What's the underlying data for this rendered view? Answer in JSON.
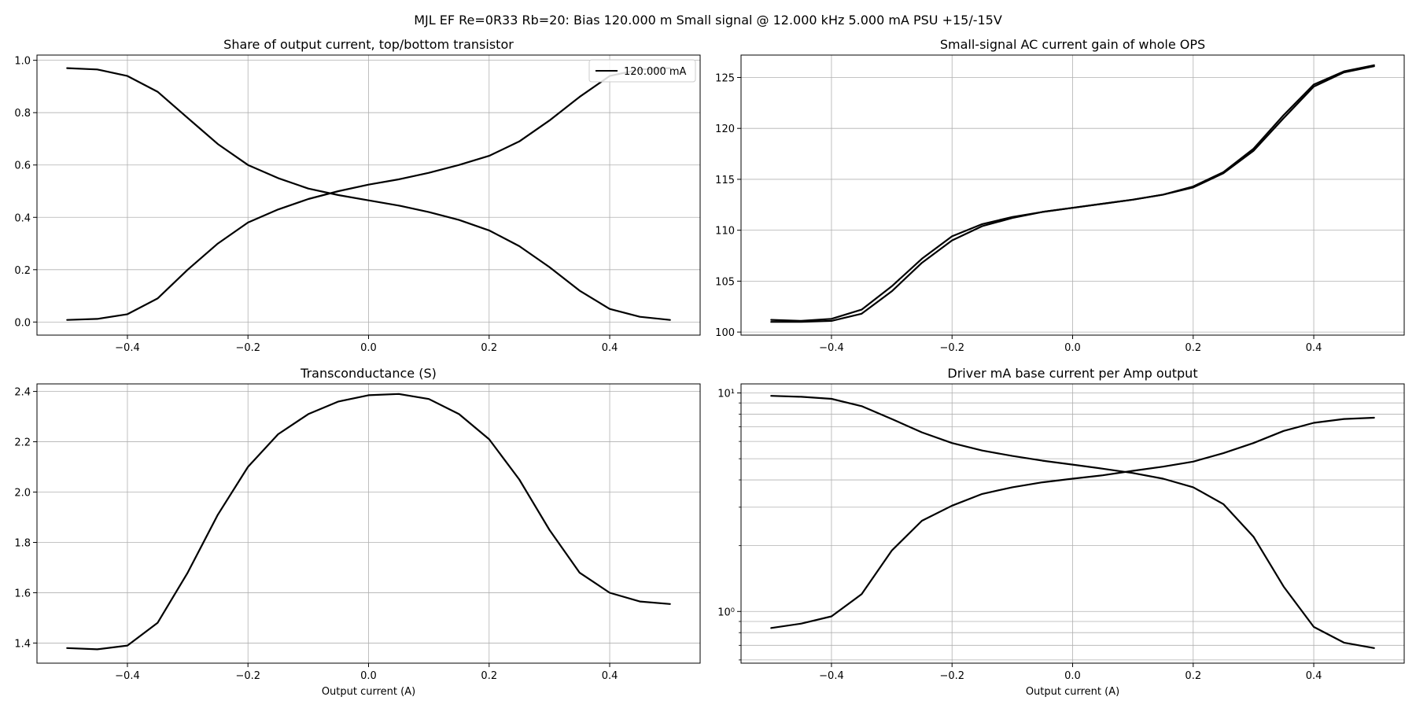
{
  "suptitle": "MJL EF Re=0R33 Rb=20: Bias 120.000 m Small signal @ 12.000 kHz 5.000 mA PSU +15/-15V",
  "chart_data": [
    {
      "type": "line",
      "title": "Share of output current, top/bottom transistor",
      "xlabel": "",
      "ylabel": "",
      "xlim": [
        -0.55,
        0.55
      ],
      "ylim": [
        -0.05,
        1.02
      ],
      "xticks": [
        -0.4,
        -0.2,
        0.0,
        0.2,
        0.4
      ],
      "yticks": [
        0.0,
        0.2,
        0.4,
        0.6,
        0.8,
        1.0
      ],
      "grid": true,
      "legend": {
        "placement": "top-right",
        "entries": [
          "120.000 mA"
        ]
      },
      "line_color": "#000000",
      "series": [
        {
          "x": [
            -0.5,
            -0.45,
            -0.4,
            -0.35,
            -0.3,
            -0.25,
            -0.2,
            -0.15,
            -0.1,
            -0.05,
            0.0,
            0.05,
            0.1,
            0.15,
            0.2,
            0.25,
            0.3,
            0.35,
            0.4,
            0.45,
            0.5
          ],
          "y": [
            0.97,
            0.965,
            0.94,
            0.88,
            0.78,
            0.68,
            0.6,
            0.55,
            0.51,
            0.485,
            0.465,
            0.445,
            0.42,
            0.39,
            0.35,
            0.29,
            0.21,
            0.12,
            0.05,
            0.02,
            0.008
          ]
        },
        {
          "x": [
            -0.5,
            -0.45,
            -0.4,
            -0.35,
            -0.3,
            -0.25,
            -0.2,
            -0.15,
            -0.1,
            -0.05,
            0.0,
            0.05,
            0.1,
            0.15,
            0.2,
            0.25,
            0.3,
            0.35,
            0.4,
            0.45,
            0.5
          ],
          "y": [
            0.008,
            0.012,
            0.03,
            0.09,
            0.2,
            0.3,
            0.38,
            0.43,
            0.47,
            0.5,
            0.525,
            0.545,
            0.57,
            0.6,
            0.635,
            0.69,
            0.77,
            0.86,
            0.94,
            0.965,
            0.97
          ]
        }
      ]
    },
    {
      "type": "line",
      "title": "Small-signal AC current gain of whole OPS",
      "xlabel": "",
      "ylabel": "",
      "xlim": [
        -0.55,
        0.55
      ],
      "ylim": [
        99.7,
        127.2
      ],
      "xticks": [
        -0.4,
        -0.2,
        0.0,
        0.2,
        0.4
      ],
      "yticks": [
        100,
        105,
        110,
        115,
        120,
        125
      ],
      "grid": true,
      "line_color": "#000000",
      "series": [
        {
          "x": [
            -0.5,
            -0.45,
            -0.4,
            -0.35,
            -0.3,
            -0.25,
            -0.2,
            -0.15,
            -0.1,
            -0.05,
            0.0,
            0.05,
            0.1,
            0.15,
            0.2,
            0.25,
            0.3,
            0.35,
            0.4,
            0.45,
            0.5
          ],
          "y": [
            101.2,
            101.1,
            101.3,
            102.2,
            104.5,
            107.2,
            109.4,
            110.6,
            111.3,
            111.8,
            112.2,
            112.6,
            113.0,
            113.5,
            114.3,
            115.7,
            118.0,
            121.3,
            124.3,
            125.6,
            126.2
          ]
        },
        {
          "x": [
            -0.5,
            -0.45,
            -0.4,
            -0.35,
            -0.3,
            -0.25,
            -0.2,
            -0.15,
            -0.1,
            -0.05,
            0.0,
            0.05,
            0.1,
            0.15,
            0.2,
            0.25,
            0.3,
            0.35,
            0.4,
            0.45,
            0.5
          ],
          "y": [
            101.0,
            101.0,
            101.1,
            101.8,
            104.0,
            106.8,
            109.0,
            110.4,
            111.2,
            111.8,
            112.2,
            112.6,
            113.0,
            113.5,
            114.2,
            115.6,
            117.8,
            121.0,
            124.1,
            125.5,
            126.1
          ]
        }
      ]
    },
    {
      "type": "line",
      "title": "Transconductance (S)",
      "xlabel": "Output current (A)",
      "ylabel": "",
      "xlim": [
        -0.55,
        0.55
      ],
      "ylim": [
        1.32,
        2.43
      ],
      "xticks": [
        -0.4,
        -0.2,
        0.0,
        0.2,
        0.4
      ],
      "yticks": [
        1.4,
        1.6,
        1.8,
        2.0,
        2.2,
        2.4
      ],
      "grid": true,
      "line_color": "#000000",
      "series": [
        {
          "x": [
            -0.5,
            -0.45,
            -0.4,
            -0.35,
            -0.3,
            -0.25,
            -0.2,
            -0.15,
            -0.1,
            -0.05,
            0.0,
            0.05,
            0.1,
            0.15,
            0.2,
            0.25,
            0.3,
            0.35,
            0.4,
            0.45,
            0.5
          ],
          "y": [
            1.38,
            1.375,
            1.39,
            1.48,
            1.68,
            1.91,
            2.1,
            2.23,
            2.31,
            2.36,
            2.385,
            2.39,
            2.37,
            2.31,
            2.21,
            2.05,
            1.85,
            1.68,
            1.6,
            1.565,
            1.555
          ]
        }
      ]
    },
    {
      "type": "line",
      "title": "Driver mA base current per Amp output",
      "xlabel": "Output current (A)",
      "ylabel": "",
      "xlim": [
        -0.55,
        0.55
      ],
      "ylim": [
        0.58,
        11.0
      ],
      "yscale": "log",
      "xticks": [
        -0.4,
        -0.2,
        0.0,
        0.2,
        0.4
      ],
      "yticks": [
        1,
        10
      ],
      "yticklabels": [
        "10⁰",
        "10¹"
      ],
      "grid": true,
      "line_color": "#000000",
      "series": [
        {
          "x": [
            -0.5,
            -0.45,
            -0.4,
            -0.35,
            -0.3,
            -0.25,
            -0.2,
            -0.15,
            -0.1,
            -0.05,
            0.0,
            0.05,
            0.1,
            0.15,
            0.2,
            0.25,
            0.3,
            0.35,
            0.4,
            0.45,
            0.5
          ],
          "y": [
            9.7,
            9.6,
            9.4,
            8.7,
            7.6,
            6.6,
            5.9,
            5.45,
            5.15,
            4.9,
            4.7,
            4.5,
            4.3,
            4.05,
            3.7,
            3.1,
            2.2,
            1.3,
            0.85,
            0.72,
            0.68
          ]
        },
        {
          "x": [
            -0.5,
            -0.45,
            -0.4,
            -0.35,
            -0.3,
            -0.25,
            -0.2,
            -0.15,
            -0.1,
            -0.05,
            0.0,
            0.05,
            0.1,
            0.15,
            0.2,
            0.25,
            0.3,
            0.35,
            0.4,
            0.45,
            0.5
          ],
          "y": [
            0.84,
            0.88,
            0.95,
            1.2,
            1.9,
            2.6,
            3.05,
            3.45,
            3.7,
            3.9,
            4.05,
            4.2,
            4.4,
            4.6,
            4.85,
            5.3,
            5.9,
            6.7,
            7.3,
            7.6,
            7.7
          ]
        }
      ]
    }
  ]
}
